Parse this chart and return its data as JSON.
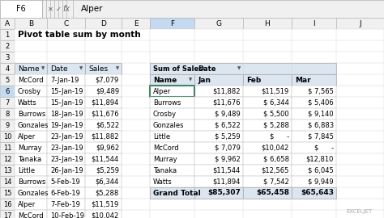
{
  "title": "Pivot table sum by month",
  "formula_bar_text": "Alper",
  "cell_ref": "F6",
  "bg_color": "#ffffff",
  "header_bg": "#dce6f1",
  "selected_col_bg": "#c5d9f1",
  "selected_cell_border": "#217346",
  "grand_total_bg": "#dce6f1",
  "left_table": {
    "headers": [
      "Name",
      "Date",
      "Sales"
    ],
    "rows": [
      [
        "McCord",
        "7-Jan-19",
        "$7,079"
      ],
      [
        "Crosby",
        "15-Jan-19",
        "$9,489"
      ],
      [
        "Watts",
        "15-Jan-19",
        "$11,894"
      ],
      [
        "Burrows",
        "18-Jan-19",
        "$11,676"
      ],
      [
        "Gonzales",
        "19-Jan-19",
        "$6,522"
      ],
      [
        "Alper",
        "23-Jan-19",
        "$11,882"
      ],
      [
        "Murray",
        "23-Jan-19",
        "$9,962"
      ],
      [
        "Tanaka",
        "23-Jan-19",
        "$11,544"
      ],
      [
        "Little",
        "26-Jan-19",
        "$5,259"
      ],
      [
        "Burrows",
        "5-Feb-19",
        "$6,344"
      ],
      [
        "Gonzales",
        "6-Feb-19",
        "$5,288"
      ],
      [
        "Alper",
        "7-Feb-19",
        "$11,519"
      ],
      [
        "McCord",
        "10-Feb-19",
        "$10,042"
      ]
    ]
  },
  "right_table": {
    "merged_header": "Sum of Sales  Date",
    "col_headers": [
      "Name",
      "Jan",
      "Feb",
      "Mar"
    ],
    "rows": [
      [
        "Alper",
        "$11,882",
        "$11,519",
        "$ 7,565"
      ],
      [
        "Burrows",
        "$11,676",
        "$ 6,344",
        "$ 5,406"
      ],
      [
        "Crosby",
        "$ 9,489",
        "$ 5,500",
        "$ 9,140"
      ],
      [
        "Gonzales",
        "$ 6,522",
        "$ 5,288",
        "$ 6,883"
      ],
      [
        "Little",
        "$ 5,259",
        "$      -",
        "$ 7,845"
      ],
      [
        "McCord",
        "$ 7,079",
        "$10,042",
        "$      -"
      ],
      [
        "Murray",
        "$ 9,962",
        "$ 6,658",
        "$12,810"
      ],
      [
        "Tanaka",
        "$11,544",
        "$12,565",
        "$ 6,045"
      ],
      [
        "Watts",
        "$11,894",
        "$ 7,542",
        "$ 9,949"
      ]
    ],
    "grand_total": [
      "Grand Total",
      "$85,307",
      "$65,458",
      "$65,643"
    ],
    "selected_row": 0,
    "selected_col": 0
  },
  "excel_cols": [
    "A",
    "B",
    "C",
    "D",
    "E",
    "F",
    "G",
    "H",
    "I",
    "J"
  ],
  "excel_rows": [
    1,
    2,
    3,
    4,
    5,
    6,
    7,
    8,
    9,
    10,
    11,
    12,
    13,
    14,
    15,
    16,
    17
  ]
}
